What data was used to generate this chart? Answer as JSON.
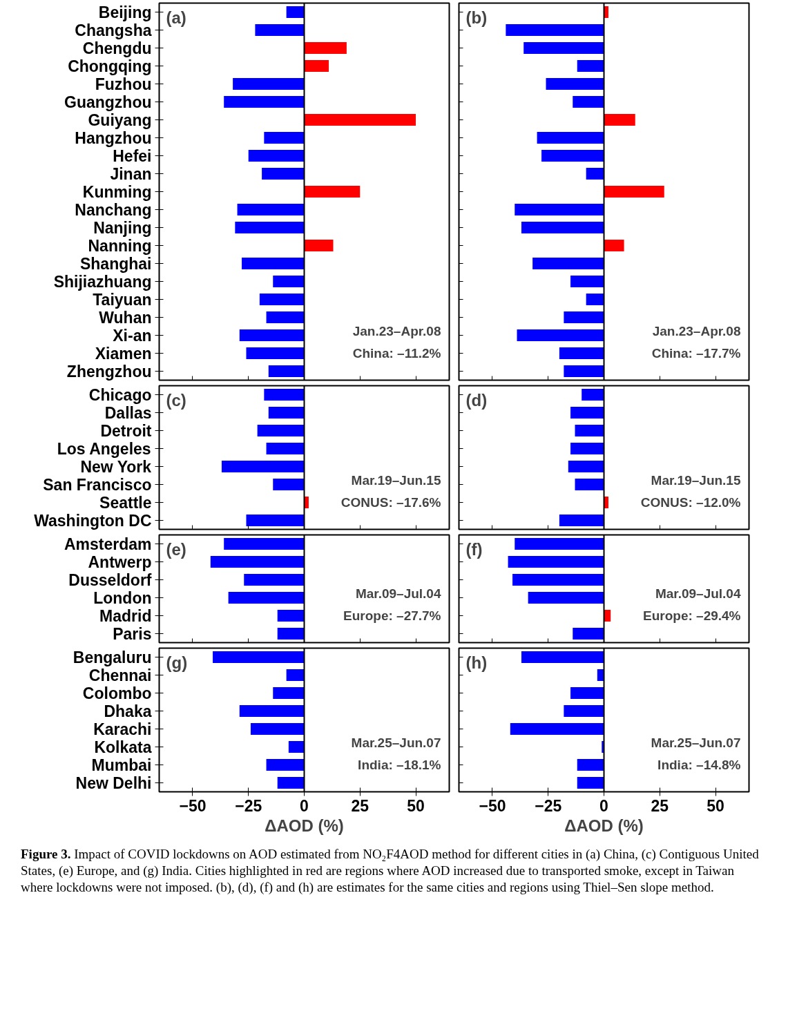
{
  "chart_data": [
    {
      "type": "bar",
      "orientation": "horizontal",
      "title": "(a)",
      "categories": [
        "Beijing",
        "Changsha",
        "Chengdu",
        "Chongqing",
        "Fuzhou",
        "Guangzhou",
        "Guiyang",
        "Hangzhou",
        "Hefei",
        "Jinan",
        "Kunming",
        "Nanchang",
        "Nanjing",
        "Nanning",
        "Shanghai",
        "Shijiazhuang",
        "Taiyuan",
        "Wuhan",
        "Xi-an",
        "Xiamen",
        "Zhengzhou"
      ],
      "values": [
        -8,
        -22,
        19,
        11,
        -32,
        -36,
        50,
        -18,
        -25,
        -19,
        25,
        -30,
        -31,
        13,
        -28,
        -14,
        -20,
        -17,
        -29,
        -26,
        -16
      ],
      "colors": [
        "#0000ff",
        "#0000ff",
        "#ff0000",
        "#ff0000",
        "#0000ff",
        "#0000ff",
        "#ff0000",
        "#0000ff",
        "#0000ff",
        "#0000ff",
        "#ff0000",
        "#0000ff",
        "#0000ff",
        "#ff0000",
        "#0000ff",
        "#0000ff",
        "#0000ff",
        "#0000ff",
        "#0000ff",
        "#0000ff",
        "#0000ff"
      ],
      "xlim": [
        -65,
        65
      ],
      "xticks": [
        -50,
        -25,
        0,
        25,
        50
      ],
      "tick_labels": "y",
      "ref_lines": [
        {
          "axis": "x",
          "value": 0
        }
      ],
      "annotations": [
        "Jan.23–Apr.08",
        "China: –11.2%"
      ]
    },
    {
      "type": "bar",
      "orientation": "horizontal",
      "title": "(b)",
      "categories": [
        null,
        null,
        null,
        null,
        null,
        null,
        null,
        null,
        null,
        null,
        null,
        null,
        null,
        null,
        null,
        null,
        null,
        null,
        null,
        null,
        null
      ],
      "values": [
        2,
        -44,
        -36,
        -12,
        -26,
        -14,
        14,
        -30,
        -28,
        -8,
        27,
        -40,
        -37,
        9,
        -32,
        -15,
        -8,
        -18,
        -39,
        -20,
        -18
      ],
      "colors": [
        "#ff0000",
        "#0000ff",
        "#0000ff",
        "#0000ff",
        "#0000ff",
        "#0000ff",
        "#ff0000",
        "#0000ff",
        "#0000ff",
        "#0000ff",
        "#ff0000",
        "#0000ff",
        "#0000ff",
        "#ff0000",
        "#0000ff",
        "#0000ff",
        "#0000ff",
        "#0000ff",
        "#0000ff",
        "#0000ff",
        "#0000ff"
      ],
      "xlim": [
        -65,
        65
      ],
      "xticks": [
        -50,
        -25,
        0,
        25,
        50
      ],
      "tick_labels": false,
      "ref_lines": [
        {
          "axis": "x",
          "value": 0
        }
      ],
      "annotations": [
        "Jan.23–Apr.08",
        "China: –17.7%"
      ]
    },
    {
      "type": "bar",
      "orientation": "horizontal",
      "title": "(c)",
      "categories": [
        "Chicago",
        "Dallas",
        "Detroit",
        "Los Angeles",
        "New York",
        "San Francisco",
        "Seattle",
        "Washington DC"
      ],
      "values": [
        -18,
        -16,
        -21,
        -17,
        -37,
        -14,
        2,
        -26
      ],
      "colors": [
        "#0000ff",
        "#0000ff",
        "#0000ff",
        "#0000ff",
        "#0000ff",
        "#0000ff",
        "#ff0000",
        "#0000ff"
      ],
      "xlim": [
        -65,
        65
      ],
      "xticks": [
        -50,
        -25,
        0,
        25,
        50
      ],
      "tick_labels": "y",
      "ref_lines": [
        {
          "axis": "x",
          "value": 0
        }
      ],
      "annotations": [
        "Mar.19–Jun.15",
        "CONUS: –17.6%"
      ]
    },
    {
      "type": "bar",
      "orientation": "horizontal",
      "title": "(d)",
      "categories": [
        null,
        null,
        null,
        null,
        null,
        null,
        null,
        null
      ],
      "values": [
        -10,
        -15,
        -13,
        -15,
        -16,
        -13,
        2,
        -20
      ],
      "colors": [
        "#0000ff",
        "#0000ff",
        "#0000ff",
        "#0000ff",
        "#0000ff",
        "#0000ff",
        "#ff0000",
        "#0000ff"
      ],
      "xlim": [
        -65,
        65
      ],
      "xticks": [
        -50,
        -25,
        0,
        25,
        50
      ],
      "tick_labels": false,
      "ref_lines": [
        {
          "axis": "x",
          "value": 0
        }
      ],
      "annotations": [
        "Mar.19–Jun.15",
        "CONUS: –12.0%"
      ]
    },
    {
      "type": "bar",
      "orientation": "horizontal",
      "title": "(e)",
      "categories": [
        "Amsterdam",
        "Antwerp",
        "Dusseldorf",
        "London",
        "Madrid",
        "Paris"
      ],
      "values": [
        -36,
        -42,
        -27,
        -34,
        -12,
        -12
      ],
      "colors": [
        "#0000ff",
        "#0000ff",
        "#0000ff",
        "#0000ff",
        "#0000ff",
        "#0000ff"
      ],
      "xlim": [
        -65,
        65
      ],
      "xticks": [
        -50,
        -25,
        0,
        25,
        50
      ],
      "tick_labels": "y",
      "ref_lines": [
        {
          "axis": "x",
          "value": 0
        }
      ],
      "annotations": [
        "Mar.09–Jul.04",
        "Europe: –27.7%"
      ]
    },
    {
      "type": "bar",
      "orientation": "horizontal",
      "title": "(f)",
      "categories": [
        null,
        null,
        null,
        null,
        null,
        null
      ],
      "values": [
        -40,
        -43,
        -41,
        -34,
        3,
        -14
      ],
      "colors": [
        "#0000ff",
        "#0000ff",
        "#0000ff",
        "#0000ff",
        "#ff0000",
        "#0000ff"
      ],
      "xlim": [
        -65,
        65
      ],
      "xticks": [
        -50,
        -25,
        0,
        25,
        50
      ],
      "tick_labels": false,
      "ref_lines": [
        {
          "axis": "x",
          "value": 0
        }
      ],
      "annotations": [
        "Mar.09–Jul.04",
        "Europe: –29.4%"
      ]
    },
    {
      "type": "bar",
      "orientation": "horizontal",
      "title": "(g)",
      "categories": [
        "Bengaluru",
        "Chennai",
        "Colombo",
        "Dhaka",
        "Karachi",
        "Kolkata",
        "Mumbai",
        "New Delhi"
      ],
      "values": [
        -41,
        -8,
        -14,
        -29,
        -24,
        -7,
        -17,
        -12
      ],
      "colors": [
        "#0000ff",
        "#0000ff",
        "#0000ff",
        "#0000ff",
        "#0000ff",
        "#0000ff",
        "#0000ff",
        "#0000ff"
      ],
      "xlim": [
        -65,
        65
      ],
      "xticks": [
        -50,
        -25,
        0,
        25,
        50
      ],
      "xlabel": "ΔAOD (%)",
      "ref_lines": [
        {
          "axis": "x",
          "value": 0
        }
      ],
      "annotations": [
        "Mar.25–Jun.07",
        "India: –18.1%"
      ]
    },
    {
      "type": "bar",
      "orientation": "horizontal",
      "title": "(h)",
      "categories": [
        null,
        null,
        null,
        null,
        null,
        null,
        null,
        null
      ],
      "values": [
        -37,
        -3,
        -15,
        -18,
        -42,
        -1,
        -12,
        -12
      ],
      "colors": [
        "#0000ff",
        "#0000ff",
        "#0000ff",
        "#0000ff",
        "#0000ff",
        "#0000ff",
        "#0000ff",
        "#0000ff"
      ],
      "xlim": [
        -65,
        65
      ],
      "xticks": [
        -50,
        -25,
        0,
        25,
        50
      ],
      "xlabel": "ΔAOD (%)",
      "tick_labels": "x",
      "ref_lines": [
        {
          "axis": "x",
          "value": 0
        }
      ],
      "annotations": [
        "Mar.25–Jun.07",
        "India: –14.8%"
      ]
    },
    {
      "type": "other",
      "title": "Figure 3.",
      "annotations": [
        "Impact of COVID lockdowns on AOD estimated from NO₂F4AOD method for different cities in (a) China, (c) Contiguous United States, (e) Europe, and (g) India. Cities highlighted in red are regions where AOD increased due to transported smoke, except in Taiwan where lockdowns were not imposed. (b), (d), (f) and (h) are estimates for the same cities and regions using Thiel–Sen slope method."
      ]
    }
  ]
}
